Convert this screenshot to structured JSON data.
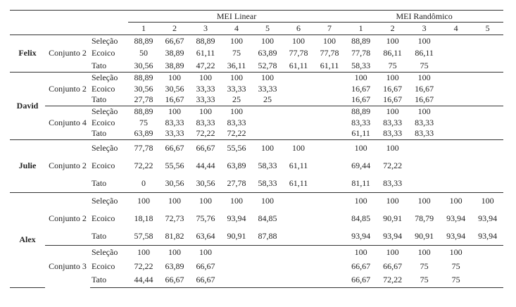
{
  "header": {
    "groups": [
      {
        "label": "MEI Linear",
        "columns": [
          "1",
          "2",
          "3",
          "4",
          "5",
          "6",
          "7"
        ]
      },
      {
        "label": "MEI Randômico",
        "columns": [
          "1",
          "2",
          "3",
          "4",
          "5"
        ]
      }
    ]
  },
  "participants": [
    {
      "name": "Felix",
      "sets": [
        {
          "label": "Conjunto 2",
          "rows": [
            {
              "condition": "Seleção",
              "linear": [
                "88,89",
                "66,67",
                "88,89",
                "100",
                "100",
                "100",
                "100"
              ],
              "random": [
                "88,89",
                "100",
                "100"
              ]
            },
            {
              "condition": "Ecoico",
              "linear": [
                "50",
                "38,89",
                "61,11",
                "75",
                "63,89",
                "77,78",
                "77,78"
              ],
              "random": [
                "77,78",
                "86,11",
                "86,11"
              ]
            },
            {
              "condition": "Tato",
              "linear": [
                "30,56",
                "38,89",
                "47,22",
                "36,11",
                "52,78",
                "61,11",
                "61,11"
              ],
              "random": [
                "58,33",
                "75",
                "75"
              ]
            }
          ]
        }
      ]
    },
    {
      "name": "David",
      "sets": [
        {
          "label": "Conjunto 2",
          "rows": [
            {
              "condition": "Seleção",
              "linear": [
                "88,89",
                "100",
                "100",
                "100",
                "100"
              ],
              "random": [
                "100",
                "100",
                "100"
              ]
            },
            {
              "condition": "Ecoico",
              "linear": [
                "30,56",
                "30,56",
                "33,33",
                "33,33",
                "33,33"
              ],
              "random": [
                "16,67",
                "16,67",
                "16,67"
              ]
            },
            {
              "condition": "Tato",
              "linear": [
                "27,78",
                "16,67",
                "33,33",
                "25",
                "25"
              ],
              "random": [
                "16,67",
                "16,67",
                "16,67"
              ]
            }
          ]
        },
        {
          "label": "Conjunto 4",
          "rows": [
            {
              "condition": "Seleção",
              "linear": [
                "88,89",
                "100",
                "100",
                "100"
              ],
              "random": [
                "88,89",
                "100",
                "100"
              ]
            },
            {
              "condition": "Ecoico",
              "linear": [
                "75",
                "83,33",
                "83,33",
                "83,33"
              ],
              "random": [
                "83,33",
                "83,33",
                "83,33"
              ]
            },
            {
              "condition": "Tato",
              "linear": [
                "63,89",
                "33,33",
                "72,22",
                "72,22"
              ],
              "random": [
                "61,11",
                "83,33",
                "83,33"
              ]
            }
          ]
        }
      ]
    },
    {
      "name": "Julie",
      "sets": [
        {
          "label": "Conjunto 2",
          "rows": [
            {
              "condition": "Seleção",
              "linear": [
                "77,78",
                "66,67",
                "66,67",
                "55,56",
                "100",
                "100"
              ],
              "random": [
                "100",
                "100"
              ]
            },
            {
              "condition": "Ecoico",
              "linear": [
                "72,22",
                "55,56",
                "44,44",
                "63,89",
                "58,33",
                "61,11"
              ],
              "random": [
                "69,44",
                "72,22"
              ]
            },
            {
              "condition": "Tato",
              "linear": [
                "0",
                "30,56",
                "30,56",
                "27,78",
                "58,33",
                "61,11"
              ],
              "random": [
                "81,11",
                "83,33"
              ]
            }
          ]
        }
      ]
    },
    {
      "name": "Alex",
      "sets": [
        {
          "label": "Conjunto 2",
          "rows": [
            {
              "condition": "Seleção",
              "linear": [
                "100",
                "100",
                "100",
                "100",
                "100"
              ],
              "random": [
                "100",
                "100",
                "100",
                "100",
                "100"
              ]
            },
            {
              "condition": "Ecoico",
              "linear": [
                "18,18",
                "72,73",
                "75,76",
                "93,94",
                "84,85"
              ],
              "random": [
                "84,85",
                "90,91",
                "78,79",
                "93,94",
                "93,94"
              ]
            },
            {
              "condition": "Tato",
              "linear": [
                "57,58",
                "81,82",
                "63,64",
                "90,91",
                "87,88"
              ],
              "random": [
                "93,94",
                "93,94",
                "90,91",
                "93,94",
                "93,94"
              ]
            }
          ]
        },
        {
          "label": "Conjunto 3",
          "rows": [
            {
              "condition": "Seleção",
              "linear": [
                "100",
                "100",
                "100"
              ],
              "random": [
                "100",
                "100",
                "100",
                "100"
              ]
            },
            {
              "condition": "Ecoico",
              "linear": [
                "72,22",
                "63,89",
                "66,67"
              ],
              "random": [
                "66,67",
                "66,67",
                "75",
                "75"
              ]
            },
            {
              "condition": "Tato",
              "linear": [
                "44,44",
                "66,67",
                "66,67"
              ],
              "random": [
                "66,67",
                "72,22",
                "75",
                "75"
              ]
            }
          ]
        }
      ]
    }
  ]
}
